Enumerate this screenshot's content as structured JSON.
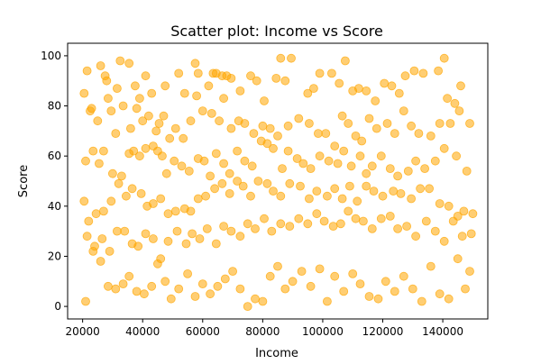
{
  "chart_data": {
    "type": "scatter",
    "title": "Scatter plot: Income vs Score",
    "xlabel": "Income",
    "ylabel": "Score",
    "xlim": [
      15000,
      155000
    ],
    "ylim": [
      -5,
      105
    ],
    "xticks": [
      20000,
      40000,
      60000,
      80000,
      100000,
      120000,
      140000
    ],
    "xtick_labels": [
      "20000",
      "40000",
      "60000",
      "80000",
      "100000",
      "120000",
      "140000"
    ],
    "yticks": [
      0,
      20,
      40,
      60,
      80,
      100
    ],
    "ytick_labels": [
      "0",
      "20",
      "40",
      "60",
      "80",
      "100"
    ],
    "grid": false,
    "legend": "none",
    "series": [
      {
        "color": "#FFA500",
        "points": [
          [
            20500,
            85
          ],
          [
            21500,
            94
          ],
          [
            23000,
            79
          ],
          [
            23500,
            62
          ],
          [
            26000,
            96
          ],
          [
            27500,
            92
          ],
          [
            28000,
            90
          ],
          [
            28500,
            83
          ],
          [
            31500,
            87
          ],
          [
            32500,
            98
          ],
          [
            35500,
            97
          ],
          [
            37500,
            88
          ],
          [
            39000,
            83
          ],
          [
            41000,
            92
          ],
          [
            43000,
            85
          ],
          [
            45500,
            73
          ],
          [
            47500,
            88
          ],
          [
            52000,
            93
          ],
          [
            54000,
            85
          ],
          [
            57500,
            97
          ],
          [
            58500,
            93
          ],
          [
            62000,
            88
          ],
          [
            63500,
            93
          ],
          [
            64500,
            93
          ],
          [
            66500,
            92
          ],
          [
            68000,
            92
          ],
          [
            69500,
            91
          ],
          [
            72500,
            86
          ],
          [
            76000,
            92
          ],
          [
            78000,
            90
          ],
          [
            80500,
            82
          ],
          [
            84500,
            91
          ],
          [
            86000,
            99
          ],
          [
            87500,
            90
          ],
          [
            89500,
            99
          ],
          [
            95000,
            85
          ],
          [
            97000,
            87
          ],
          [
            99000,
            93
          ],
          [
            103000,
            93
          ],
          [
            105500,
            89
          ],
          [
            107500,
            98
          ],
          [
            110000,
            86
          ],
          [
            112000,
            87
          ],
          [
            114500,
            86
          ],
          [
            117500,
            82
          ],
          [
            120500,
            89
          ],
          [
            123000,
            88
          ],
          [
            125500,
            85
          ],
          [
            127500,
            92
          ],
          [
            130500,
            94
          ],
          [
            133500,
            93
          ],
          [
            138500,
            94
          ],
          [
            140500,
            99
          ],
          [
            141500,
            83
          ],
          [
            144000,
            81
          ],
          [
            146000,
            88
          ],
          [
            22500,
            78
          ],
          [
            25000,
            74
          ],
          [
            27000,
            62
          ],
          [
            29500,
            78
          ],
          [
            31000,
            69
          ],
          [
            33500,
            80
          ],
          [
            36000,
            71
          ],
          [
            38000,
            79
          ],
          [
            40000,
            74
          ],
          [
            42000,
            76
          ],
          [
            44500,
            70
          ],
          [
            47000,
            76
          ],
          [
            49000,
            67
          ],
          [
            51000,
            71
          ],
          [
            53500,
            67
          ],
          [
            56000,
            74
          ],
          [
            58000,
            84
          ],
          [
            60000,
            78
          ],
          [
            63000,
            77
          ],
          [
            65500,
            74
          ],
          [
            67000,
            83
          ],
          [
            69500,
            71
          ],
          [
            72000,
            74
          ],
          [
            74000,
            73
          ],
          [
            77000,
            69
          ],
          [
            80000,
            72
          ],
          [
            82500,
            71
          ],
          [
            85000,
            68
          ],
          [
            88500,
            72
          ],
          [
            92000,
            75
          ],
          [
            95500,
            73
          ],
          [
            98500,
            69
          ],
          [
            101000,
            69
          ],
          [
            104000,
            64
          ],
          [
            106500,
            76
          ],
          [
            108500,
            73
          ],
          [
            111000,
            68
          ],
          [
            113000,
            66
          ],
          [
            115500,
            75
          ],
          [
            118000,
            71
          ],
          [
            121500,
            73
          ],
          [
            124000,
            69
          ],
          [
            127000,
            78
          ],
          [
            129500,
            72
          ],
          [
            132000,
            69
          ],
          [
            136000,
            68
          ],
          [
            139000,
            73
          ],
          [
            142500,
            73
          ],
          [
            145500,
            78
          ],
          [
            149000,
            73
          ],
          [
            21000,
            58
          ],
          [
            25500,
            57
          ],
          [
            30000,
            53
          ],
          [
            33000,
            52
          ],
          [
            35500,
            61
          ],
          [
            37000,
            62
          ],
          [
            39000,
            60
          ],
          [
            41000,
            63
          ],
          [
            43500,
            64
          ],
          [
            45000,
            62
          ],
          [
            46500,
            60
          ],
          [
            48000,
            53
          ],
          [
            50500,
            58
          ],
          [
            53000,
            56
          ],
          [
            55500,
            54
          ],
          [
            58500,
            59
          ],
          [
            60500,
            58
          ],
          [
            62500,
            52
          ],
          [
            64500,
            61
          ],
          [
            67000,
            57
          ],
          [
            69000,
            53
          ],
          [
            71500,
            62
          ],
          [
            74000,
            58
          ],
          [
            76500,
            56
          ],
          [
            79500,
            66
          ],
          [
            81500,
            65
          ],
          [
            83500,
            63
          ],
          [
            86500,
            55
          ],
          [
            88500,
            62
          ],
          [
            91500,
            59
          ],
          [
            93500,
            57
          ],
          [
            96000,
            55
          ],
          [
            99000,
            60
          ],
          [
            102000,
            58
          ],
          [
            105000,
            57
          ],
          [
            107000,
            62
          ],
          [
            109500,
            56
          ],
          [
            112500,
            60
          ],
          [
            114500,
            53
          ],
          [
            116500,
            56
          ],
          [
            119500,
            60
          ],
          [
            122500,
            55
          ],
          [
            125000,
            52
          ],
          [
            128500,
            54
          ],
          [
            131000,
            58
          ],
          [
            134000,
            55
          ],
          [
            137500,
            58
          ],
          [
            140500,
            63
          ],
          [
            144500,
            60
          ],
          [
            148000,
            54
          ],
          [
            20500,
            42
          ],
          [
            22000,
            34
          ],
          [
            24500,
            37
          ],
          [
            27000,
            38
          ],
          [
            29500,
            42
          ],
          [
            32000,
            49
          ],
          [
            34500,
            44
          ],
          [
            36500,
            47
          ],
          [
            39500,
            45
          ],
          [
            41500,
            40
          ],
          [
            43500,
            41
          ],
          [
            46000,
            43
          ],
          [
            48500,
            37
          ],
          [
            51000,
            38
          ],
          [
            54000,
            39
          ],
          [
            56000,
            38
          ],
          [
            58500,
            43
          ],
          [
            61000,
            44
          ],
          [
            64000,
            47
          ],
          [
            66500,
            49
          ],
          [
            69000,
            45
          ],
          [
            71500,
            50
          ],
          [
            73500,
            48
          ],
          [
            76000,
            44
          ],
          [
            78500,
            50
          ],
          [
            81500,
            49
          ],
          [
            83500,
            46
          ],
          [
            86000,
            44
          ],
          [
            89000,
            49
          ],
          [
            92500,
            48
          ],
          [
            95500,
            43
          ],
          [
            98000,
            46
          ],
          [
            101500,
            44
          ],
          [
            104000,
            47
          ],
          [
            106500,
            43
          ],
          [
            109000,
            48
          ],
          [
            111500,
            42
          ],
          [
            114500,
            48
          ],
          [
            117000,
            46
          ],
          [
            120000,
            44
          ],
          [
            123500,
            46
          ],
          [
            126000,
            45
          ],
          [
            129500,
            43
          ],
          [
            132500,
            47
          ],
          [
            135500,
            47
          ],
          [
            139000,
            41
          ],
          [
            142000,
            40
          ],
          [
            145000,
            36
          ],
          [
            147000,
            38
          ],
          [
            150000,
            37
          ],
          [
            21500,
            28
          ],
          [
            24000,
            24
          ],
          [
            26500,
            27
          ],
          [
            29000,
            22
          ],
          [
            31500,
            30
          ],
          [
            34000,
            30
          ],
          [
            36500,
            25
          ],
          [
            38500,
            24
          ],
          [
            41000,
            29
          ],
          [
            43500,
            27
          ],
          [
            46000,
            19
          ],
          [
            48500,
            26
          ],
          [
            51500,
            30
          ],
          [
            54500,
            25
          ],
          [
            56500,
            29
          ],
          [
            59000,
            27
          ],
          [
            61500,
            31
          ],
          [
            64500,
            25
          ],
          [
            67000,
            32
          ],
          [
            69500,
            30
          ],
          [
            72500,
            28
          ],
          [
            75000,
            33
          ],
          [
            77500,
            31
          ],
          [
            80500,
            35
          ],
          [
            83000,
            30
          ],
          [
            86000,
            33
          ],
          [
            89000,
            32
          ],
          [
            92000,
            35
          ],
          [
            95000,
            33
          ],
          [
            98000,
            37
          ],
          [
            100500,
            34
          ],
          [
            103500,
            32
          ],
          [
            106000,
            33
          ],
          [
            108500,
            38
          ],
          [
            111000,
            35
          ],
          [
            113500,
            34
          ],
          [
            116500,
            31
          ],
          [
            119500,
            35
          ],
          [
            122500,
            36
          ],
          [
            125000,
            31
          ],
          [
            128000,
            32
          ],
          [
            131000,
            28
          ],
          [
            134500,
            34
          ],
          [
            137500,
            30
          ],
          [
            140500,
            26
          ],
          [
            143500,
            34
          ],
          [
            146500,
            28
          ],
          [
            149500,
            29
          ],
          [
            21000,
            2
          ],
          [
            23500,
            22
          ],
          [
            26000,
            18
          ],
          [
            28500,
            8
          ],
          [
            31000,
            7
          ],
          [
            33500,
            9
          ],
          [
            35500,
            12
          ],
          [
            38000,
            6
          ],
          [
            40500,
            5
          ],
          [
            43000,
            8
          ],
          [
            45000,
            17
          ],
          [
            47500,
            10
          ],
          [
            49500,
            3
          ],
          [
            52000,
            7
          ],
          [
            55000,
            13
          ],
          [
            57500,
            4
          ],
          [
            60000,
            9
          ],
          [
            62500,
            5
          ],
          [
            65000,
            8
          ],
          [
            67500,
            11
          ],
          [
            70000,
            14
          ],
          [
            72500,
            7
          ],
          [
            75000,
            0
          ],
          [
            77500,
            3
          ],
          [
            80000,
            2
          ],
          [
            82500,
            12
          ],
          [
            85000,
            16
          ],
          [
            87500,
            7
          ],
          [
            90000,
            10
          ],
          [
            93000,
            14
          ],
          [
            96000,
            8
          ],
          [
            99000,
            15
          ],
          [
            101500,
            2
          ],
          [
            104000,
            12
          ],
          [
            107000,
            6
          ],
          [
            110000,
            13
          ],
          [
            112500,
            9
          ],
          [
            115500,
            4
          ],
          [
            118500,
            3
          ],
          [
            121000,
            10
          ],
          [
            124000,
            6
          ],
          [
            127000,
            12
          ],
          [
            130000,
            7
          ],
          [
            133000,
            2
          ],
          [
            136000,
            16
          ],
          [
            139000,
            5
          ],
          [
            142000,
            3
          ],
          [
            145000,
            19
          ],
          [
            147500,
            7
          ],
          [
            149000,
            14
          ]
        ]
      }
    ]
  }
}
